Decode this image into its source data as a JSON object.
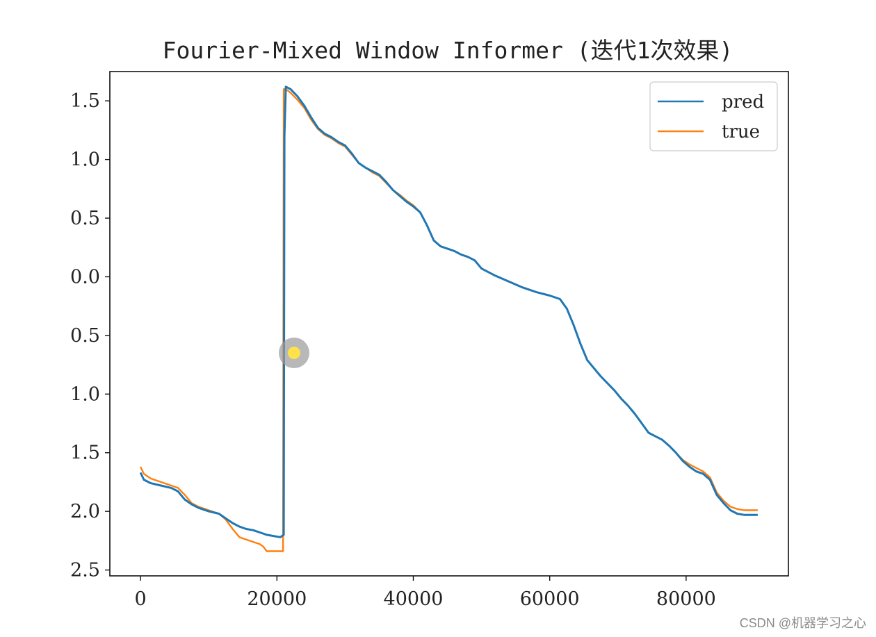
{
  "watermark": "CSDN @机器学习之心",
  "chart_data": {
    "type": "line",
    "title": "Fourier-Mixed Window Informer (迭代1次效果)",
    "xlabel": "",
    "ylabel": "",
    "xlim": [
      -4500,
      95000
    ],
    "ylim": [
      -2.55,
      1.75
    ],
    "xticks": [
      0,
      20000,
      40000,
      60000,
      80000
    ],
    "xtick_labels": [
      "0",
      "20000",
      "40000",
      "60000",
      "80000"
    ],
    "yticks": [
      1.5,
      1.0,
      0.5,
      0.0,
      -0.5,
      -1.0,
      -1.5,
      -2.0,
      -2.5
    ],
    "ytick_labels": [
      "1.5",
      "1.0",
      "0.5",
      "0.0",
      "0.5",
      "1.0",
      "1.5",
      "2.0",
      "2.5"
    ],
    "legend": {
      "position": "top-right",
      "entries": [
        "pred",
        "true"
      ]
    },
    "grid": false,
    "series": [
      {
        "name": "pred",
        "color": "#1f77b4",
        "x": [
          0,
          500,
          1500,
          3000,
          4500,
          5500,
          6500,
          7500,
          8500,
          10000,
          11500,
          12500,
          13500,
          14500,
          15500,
          16500,
          17500,
          18500,
          19500,
          20500,
          21000,
          21100,
          21300,
          22000,
          23000,
          24000,
          25000,
          26000,
          27000,
          28000,
          29000,
          30000,
          31000,
          32000,
          33000,
          34000,
          35000,
          36000,
          37000,
          38000,
          39000,
          40000,
          41000,
          42000,
          43000,
          44000,
          45000,
          46000,
          47000,
          48000,
          49000,
          50000,
          52000,
          54000,
          56000,
          58000,
          60000,
          61500,
          62500,
          63500,
          64500,
          65500,
          66500,
          67500,
          68500,
          69500,
          70500,
          71500,
          72500,
          73500,
          74500,
          75500,
          76500,
          77500,
          78500,
          79500,
          80500,
          81500,
          82500,
          83500,
          84500,
          85500,
          86500,
          87500,
          88500,
          89500,
          90500
        ],
        "y": [
          -1.67,
          -1.73,
          -1.76,
          -1.78,
          -1.8,
          -1.83,
          -1.9,
          -1.94,
          -1.97,
          -2.0,
          -2.02,
          -2.06,
          -2.1,
          -2.13,
          -2.15,
          -2.16,
          -2.18,
          -2.2,
          -2.21,
          -2.22,
          -2.2,
          1.2,
          1.62,
          1.6,
          1.54,
          1.46,
          1.36,
          1.27,
          1.22,
          1.19,
          1.15,
          1.12,
          1.05,
          0.97,
          0.93,
          0.9,
          0.87,
          0.81,
          0.74,
          0.69,
          0.64,
          0.6,
          0.55,
          0.44,
          0.31,
          0.26,
          0.24,
          0.22,
          0.19,
          0.17,
          0.14,
          0.07,
          0.01,
          -0.04,
          -0.09,
          -0.13,
          -0.16,
          -0.19,
          -0.27,
          -0.41,
          -0.57,
          -0.71,
          -0.78,
          -0.85,
          -0.91,
          -0.97,
          -1.04,
          -1.1,
          -1.17,
          -1.25,
          -1.33,
          -1.36,
          -1.39,
          -1.44,
          -1.5,
          -1.57,
          -1.62,
          -1.66,
          -1.68,
          -1.73,
          -1.86,
          -1.93,
          -1.99,
          -2.02,
          -2.03,
          -2.03,
          -2.03
        ]
      },
      {
        "name": "true",
        "color": "#ff7f0e",
        "x": [
          0,
          500,
          1500,
          3000,
          4500,
          5500,
          6500,
          7500,
          8500,
          10000,
          11500,
          12500,
          13500,
          14500,
          15500,
          16500,
          17500,
          18000,
          18500,
          19500,
          20500,
          20900,
          21000,
          21300,
          22000,
          23000,
          24000,
          25000,
          26000,
          27000,
          28000,
          29000,
          30000,
          31000,
          32000,
          33000,
          34000,
          35000,
          36000,
          37000,
          38000,
          39000,
          40000,
          41000,
          42000,
          43000,
          44000,
          45000,
          46000,
          47000,
          48000,
          49000,
          50000,
          52000,
          54000,
          56000,
          58000,
          60000,
          61500,
          62500,
          63500,
          64500,
          65500,
          66500,
          67500,
          68500,
          69500,
          70500,
          71500,
          72500,
          73500,
          74500,
          75500,
          76500,
          77500,
          78500,
          79500,
          80500,
          81500,
          82500,
          83500,
          84500,
          85500,
          86500,
          87500,
          88500,
          89500,
          90500
        ],
        "y": [
          -1.62,
          -1.68,
          -1.72,
          -1.75,
          -1.78,
          -1.8,
          -1.86,
          -1.93,
          -1.96,
          -1.99,
          -2.02,
          -2.07,
          -2.15,
          -2.22,
          -2.24,
          -2.26,
          -2.28,
          -2.3,
          -2.34,
          -2.34,
          -2.34,
          -2.34,
          1.6,
          1.6,
          1.57,
          1.51,
          1.44,
          1.34,
          1.26,
          1.21,
          1.18,
          1.14,
          1.11,
          1.04,
          0.97,
          0.93,
          0.89,
          0.86,
          0.8,
          0.74,
          0.7,
          0.65,
          0.61,
          0.55,
          0.44,
          0.31,
          0.26,
          0.24,
          0.22,
          0.19,
          0.17,
          0.14,
          0.07,
          0.01,
          -0.04,
          -0.09,
          -0.13,
          -0.16,
          -0.19,
          -0.27,
          -0.41,
          -0.57,
          -0.71,
          -0.78,
          -0.85,
          -0.91,
          -0.97,
          -1.04,
          -1.1,
          -1.17,
          -1.25,
          -1.33,
          -1.36,
          -1.39,
          -1.44,
          -1.5,
          -1.56,
          -1.6,
          -1.63,
          -1.66,
          -1.71,
          -1.84,
          -1.91,
          -1.96,
          -1.98,
          -1.99,
          -1.99,
          -1.99
        ]
      }
    ]
  }
}
